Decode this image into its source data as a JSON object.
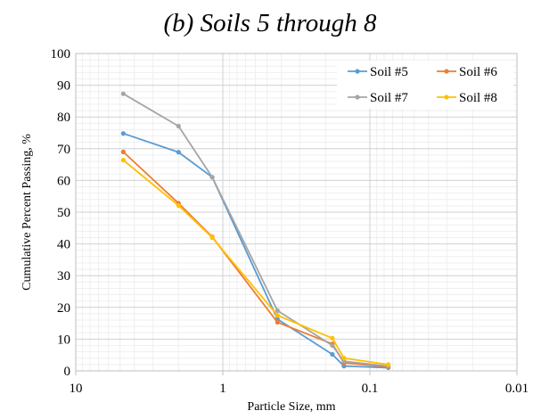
{
  "chart_data": {
    "type": "line",
    "title": "(b) Soils 5 through 8",
    "xlabel": "Particle Size, mm",
    "ylabel": "Cumulative Percent Passing, %",
    "xscale": "log",
    "xaxis_reversed": true,
    "xlim": [
      10,
      0.01
    ],
    "ylim": [
      0,
      100
    ],
    "xticks": [
      {
        "value": 10,
        "label": "10"
      },
      {
        "value": 1,
        "label": "1"
      },
      {
        "value": 0.1,
        "label": "0.1"
      },
      {
        "value": 0.01,
        "label": "0.01"
      }
    ],
    "yticks": [
      {
        "value": 0,
        "label": "0"
      },
      {
        "value": 10,
        "label": "10"
      },
      {
        "value": 20,
        "label": "20"
      },
      {
        "value": 30,
        "label": "30"
      },
      {
        "value": 40,
        "label": "40"
      },
      {
        "value": 50,
        "label": "50"
      },
      {
        "value": 60,
        "label": "60"
      },
      {
        "value": 70,
        "label": "70"
      },
      {
        "value": 80,
        "label": "80"
      },
      {
        "value": 90,
        "label": "90"
      },
      {
        "value": 100,
        "label": "100"
      }
    ],
    "grid": true,
    "legend_position": "top-right",
    "x": [
      4.75,
      2.0,
      1.18,
      0.425,
      0.18,
      0.15,
      0.075
    ],
    "series": [
      {
        "name": "Soil #5",
        "color": "#5B9BD5",
        "values": [
          74.8,
          68.9,
          61.0,
          16.3,
          5.2,
          1.5,
          1.0
        ]
      },
      {
        "name": "Soil #6",
        "color": "#ED7D31",
        "values": [
          69.0,
          52.8,
          42.2,
          15.3,
          8.5,
          2.5,
          1.3
        ]
      },
      {
        "name": "Soil #7",
        "color": "#A5A5A5",
        "values": [
          87.3,
          77.1,
          61.0,
          19.0,
          8.0,
          3.0,
          1.5
        ]
      },
      {
        "name": "Soil #8",
        "color": "#FFC000",
        "values": [
          66.4,
          52.1,
          42.0,
          17.5,
          10.3,
          4.0,
          2.0
        ]
      }
    ]
  }
}
